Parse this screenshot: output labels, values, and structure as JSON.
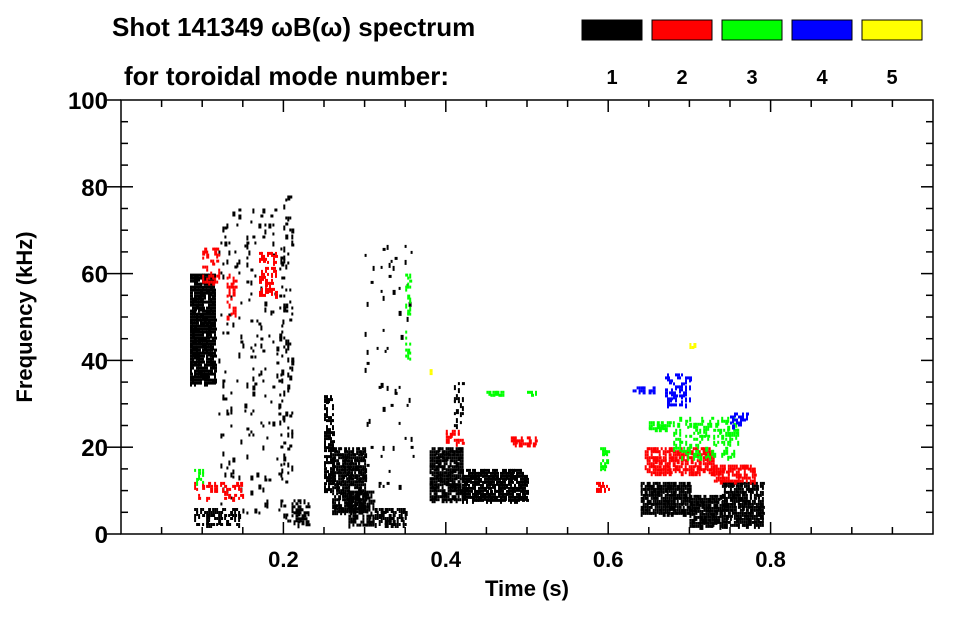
{
  "chart_data": {
    "type": "heatmap",
    "title": "Shot 141349 ωB(ω) spectrum",
    "subtitle": "for toroidal mode number:",
    "xlabel": "Time (s)",
    "ylabel": "Frequency (kHz)",
    "xlim": [
      0,
      1.0
    ],
    "ylim": [
      0,
      100
    ],
    "xticks": [
      0.2,
      0.4,
      0.6,
      0.8
    ],
    "xtick_labels": [
      "0.2",
      "0.4",
      "0.6",
      "0.8"
    ],
    "yticks": [
      0,
      20,
      40,
      60,
      80,
      100
    ],
    "ytick_labels": [
      "0",
      "20",
      "40",
      "60",
      "80",
      "100"
    ],
    "legend": [
      {
        "label": "1",
        "color": "#000000"
      },
      {
        "label": "2",
        "color": "#ff0000"
      },
      {
        "label": "3",
        "color": "#00ff00"
      },
      {
        "label": "4",
        "color": "#0000ff"
      },
      {
        "label": "5",
        "color": "#ffff00"
      }
    ],
    "legend_position": "top-right",
    "regions": [
      {
        "mode": 1,
        "t": [
          0.085,
          0.115
        ],
        "f": [
          35,
          60
        ],
        "density": 0.9
      },
      {
        "mode": 1,
        "t": [
          0.09,
          0.145
        ],
        "f": [
          2,
          6
        ],
        "density": 0.5
      },
      {
        "mode": 1,
        "t": [
          0.12,
          0.2
        ],
        "f": [
          5,
          75
        ],
        "density": 0.06
      },
      {
        "mode": 1,
        "t": [
          0.195,
          0.21
        ],
        "f": [
          2,
          78
        ],
        "density": 0.15
      },
      {
        "mode": 1,
        "t": [
          0.21,
          0.23
        ],
        "f": [
          2,
          8
        ],
        "density": 0.6
      },
      {
        "mode": 1,
        "t": [
          0.25,
          0.26
        ],
        "f": [
          10,
          32
        ],
        "density": 0.6
      },
      {
        "mode": 1,
        "t": [
          0.26,
          0.3
        ],
        "f": [
          5,
          20
        ],
        "density": 0.8
      },
      {
        "mode": 1,
        "t": [
          0.28,
          0.31
        ],
        "f": [
          2,
          10
        ],
        "density": 0.7
      },
      {
        "mode": 1,
        "t": [
          0.31,
          0.35
        ],
        "f": [
          2,
          6
        ],
        "density": 0.6
      },
      {
        "mode": 1,
        "t": [
          0.3,
          0.36
        ],
        "f": [
          10,
          68
        ],
        "density": 0.03
      },
      {
        "mode": 1,
        "t": [
          0.38,
          0.42
        ],
        "f": [
          8,
          20
        ],
        "density": 0.85
      },
      {
        "mode": 1,
        "t": [
          0.42,
          0.5
        ],
        "f": [
          8,
          15
        ],
        "density": 0.8
      },
      {
        "mode": 1,
        "t": [
          0.41,
          0.42
        ],
        "f": [
          25,
          35
        ],
        "density": 0.3
      },
      {
        "mode": 1,
        "t": [
          0.64,
          0.7
        ],
        "f": [
          5,
          12
        ],
        "density": 0.85
      },
      {
        "mode": 1,
        "t": [
          0.7,
          0.74
        ],
        "f": [
          2,
          9
        ],
        "density": 0.8
      },
      {
        "mode": 1,
        "t": [
          0.74,
          0.79
        ],
        "f": [
          2,
          12
        ],
        "density": 0.8
      },
      {
        "mode": 2,
        "t": [
          0.09,
          0.15
        ],
        "f": [
          8,
          12
        ],
        "density": 0.3
      },
      {
        "mode": 2,
        "t": [
          0.1,
          0.12
        ],
        "f": [
          58,
          66
        ],
        "density": 0.4
      },
      {
        "mode": 2,
        "t": [
          0.13,
          0.14
        ],
        "f": [
          50,
          60
        ],
        "density": 0.4
      },
      {
        "mode": 2,
        "t": [
          0.17,
          0.19
        ],
        "f": [
          55,
          65
        ],
        "density": 0.4
      },
      {
        "mode": 2,
        "t": [
          0.4,
          0.42
        ],
        "f": [
          21,
          24
        ],
        "density": 0.4
      },
      {
        "mode": 2,
        "t": [
          0.48,
          0.51
        ],
        "f": [
          21,
          22.5
        ],
        "density": 0.6
      },
      {
        "mode": 2,
        "t": [
          0.585,
          0.6
        ],
        "f": [
          10,
          12
        ],
        "density": 0.6
      },
      {
        "mode": 2,
        "t": [
          0.645,
          0.73
        ],
        "f": [
          14,
          20
        ],
        "density": 0.7
      },
      {
        "mode": 2,
        "t": [
          0.73,
          0.78
        ],
        "f": [
          12,
          16
        ],
        "density": 0.6
      },
      {
        "mode": 3,
        "t": [
          0.09,
          0.1
        ],
        "f": [
          12,
          15
        ],
        "density": 0.4
      },
      {
        "mode": 3,
        "t": [
          0.35,
          0.355
        ],
        "f": [
          40,
          60
        ],
        "density": 0.3
      },
      {
        "mode": 3,
        "t": [
          0.45,
          0.47
        ],
        "f": [
          32,
          33
        ],
        "density": 0.6
      },
      {
        "mode": 3,
        "t": [
          0.5,
          0.51
        ],
        "f": [
          32,
          33
        ],
        "density": 0.6
      },
      {
        "mode": 3,
        "t": [
          0.59,
          0.6
        ],
        "f": [
          15,
          20
        ],
        "density": 0.4
      },
      {
        "mode": 3,
        "t": [
          0.65,
          0.68
        ],
        "f": [
          24,
          26
        ],
        "density": 0.7
      },
      {
        "mode": 3,
        "t": [
          0.68,
          0.76
        ],
        "f": [
          18,
          27
        ],
        "density": 0.3
      },
      {
        "mode": 4,
        "t": [
          0.63,
          0.66
        ],
        "f": [
          33,
          34
        ],
        "density": 0.6
      },
      {
        "mode": 4,
        "t": [
          0.67,
          0.7
        ],
        "f": [
          30,
          37
        ],
        "density": 0.4
      },
      {
        "mode": 4,
        "t": [
          0.75,
          0.77
        ],
        "f": [
          25,
          28
        ],
        "density": 0.4
      },
      {
        "mode": 5,
        "t": [
          0.38,
          0.385
        ],
        "f": [
          37,
          38
        ],
        "density": 0.5
      },
      {
        "mode": 5,
        "t": [
          0.7,
          0.705
        ],
        "f": [
          43,
          44
        ],
        "density": 0.5
      }
    ]
  }
}
